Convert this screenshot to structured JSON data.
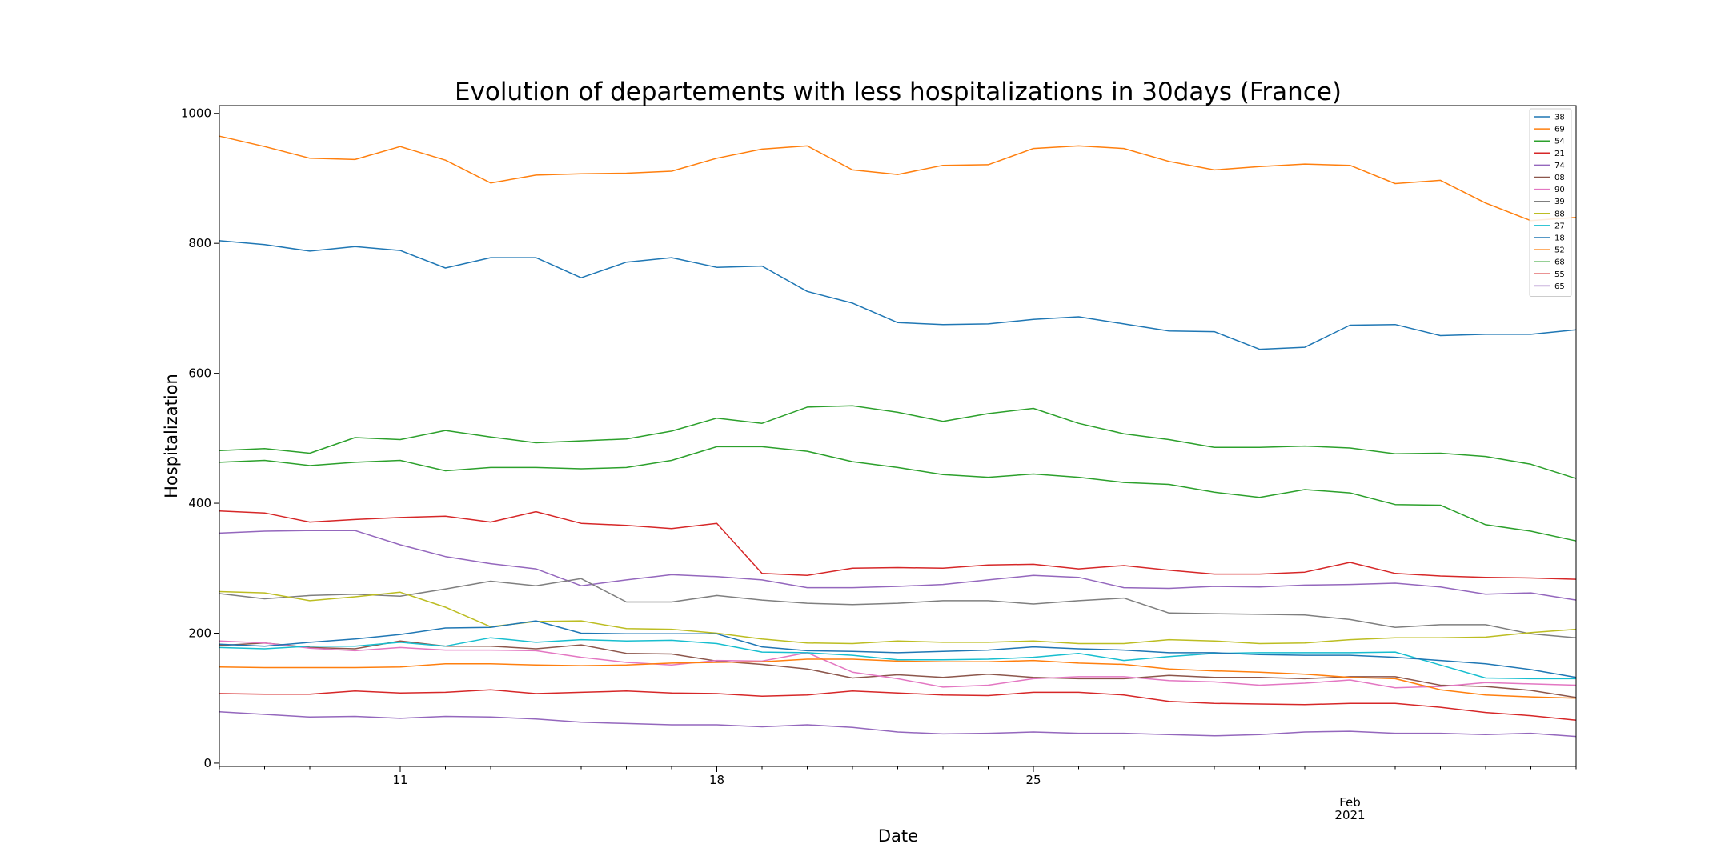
{
  "chart_data": {
    "type": "line",
    "title": "Evolution of departements with less hospitalizations in 30days (France)",
    "xlabel": "Date",
    "ylabel": "Hospitalization",
    "x": [
      "2021-01-07",
      "2021-01-08",
      "2021-01-09",
      "2021-01-10",
      "2021-01-11",
      "2021-01-12",
      "2021-01-13",
      "2021-01-14",
      "2021-01-15",
      "2021-01-16",
      "2021-01-17",
      "2021-01-18",
      "2021-01-19",
      "2021-01-20",
      "2021-01-21",
      "2021-01-22",
      "2021-01-23",
      "2021-01-24",
      "2021-01-25",
      "2021-01-26",
      "2021-01-27",
      "2021-01-28",
      "2021-01-29",
      "2021-01-30",
      "2021-01-31",
      "2021-02-01",
      "2021-02-02",
      "2021-02-03",
      "2021-02-04",
      "2021-02-05",
      "2021-02-06"
    ],
    "xlim": [
      "2021-01-07",
      "2021-02-06"
    ],
    "ylim": [
      -5,
      1012
    ],
    "x_ticks": [
      {
        "date": "2021-01-11",
        "label": "11"
      },
      {
        "date": "2021-01-18",
        "label": "18"
      },
      {
        "date": "2021-01-25",
        "label": "25"
      },
      {
        "date": "2021-02-01",
        "label": "Feb",
        "sublabel": "2021"
      }
    ],
    "y_ticks": [
      0,
      200,
      400,
      600,
      800,
      1000
    ],
    "grid": false,
    "legend_position": "top-right",
    "series": [
      {
        "name": "38",
        "color": "#1f77b4",
        "values": [
          804,
          798,
          788,
          795,
          789,
          762,
          778,
          778,
          747,
          771,
          778,
          763,
          765,
          726,
          708,
          678,
          675,
          676,
          683,
          687,
          676,
          665,
          664,
          637,
          640,
          674,
          675,
          658,
          660,
          660,
          667
        ]
      },
      {
        "name": "69",
        "color": "#ff7f0e",
        "values": [
          965,
          949,
          931,
          929,
          949,
          928,
          893,
          905,
          907,
          908,
          911,
          931,
          945,
          950,
          913,
          906,
          920,
          921,
          946,
          950,
          946,
          926,
          913,
          918,
          922,
          920,
          892,
          897,
          862,
          835,
          840
        ]
      },
      {
        "name": "54",
        "color": "#2ca02c",
        "values": [
          481,
          484,
          477,
          501,
          498,
          512,
          502,
          493,
          496,
          499,
          511,
          531,
          523,
          548,
          550,
          540,
          526,
          538,
          546,
          523,
          507,
          498,
          486,
          486,
          488,
          485,
          476,
          477,
          472,
          460,
          438
        ]
      },
      {
        "name": "21",
        "color": "#d62728",
        "values": [
          388,
          385,
          371,
          375,
          378,
          380,
          371,
          387,
          369,
          366,
          361,
          369,
          292,
          289,
          300,
          301,
          300,
          305,
          306,
          299,
          304,
          297,
          291,
          291,
          294,
          309,
          292,
          288,
          286,
          285,
          283
        ]
      },
      {
        "name": "74",
        "color": "#9467bd",
        "values": [
          354,
          357,
          358,
          358,
          336,
          318,
          307,
          299,
          273,
          282,
          290,
          287,
          282,
          270,
          270,
          272,
          275,
          282,
          289,
          286,
          270,
          269,
          272,
          271,
          274,
          275,
          277,
          271,
          260,
          262,
          251
        ]
      },
      {
        "name": "08",
        "color": "#8c564b",
        "values": [
          181,
          185,
          178,
          176,
          188,
          180,
          180,
          176,
          182,
          169,
          168,
          157,
          152,
          145,
          131,
          136,
          132,
          137,
          132,
          130,
          130,
          135,
          132,
          132,
          130,
          133,
          133,
          120,
          118,
          112,
          101
        ]
      },
      {
        "name": "90",
        "color": "#e377c2",
        "values": [
          188,
          185,
          177,
          173,
          178,
          174,
          174,
          173,
          163,
          155,
          151,
          158,
          157,
          170,
          140,
          130,
          117,
          120,
          130,
          133,
          133,
          127,
          125,
          120,
          123,
          128,
          116,
          118,
          124,
          122,
          120
        ]
      },
      {
        "name": "39",
        "color": "#7f7f7f",
        "values": [
          261,
          253,
          258,
          260,
          257,
          268,
          280,
          273,
          284,
          248,
          248,
          258,
          251,
          246,
          244,
          246,
          250,
          250,
          245,
          250,
          254,
          231,
          230,
          229,
          228,
          221,
          209,
          213,
          213,
          199,
          193
        ]
      },
      {
        "name": "88",
        "color": "#bcbd22",
        "values": [
          264,
          262,
          250,
          256,
          263,
          240,
          210,
          218,
          219,
          207,
          206,
          200,
          191,
          185,
          184,
          188,
          186,
          186,
          188,
          184,
          184,
          190,
          188,
          184,
          185,
          190,
          193,
          193,
          194,
          201,
          206
        ]
      },
      {
        "name": "27",
        "color": "#17becf",
        "values": [
          178,
          176,
          180,
          180,
          186,
          180,
          193,
          186,
          190,
          188,
          189,
          184,
          171,
          170,
          166,
          159,
          159,
          160,
          163,
          169,
          158,
          164,
          169,
          170,
          170,
          170,
          171,
          151,
          131,
          130,
          130
        ]
      },
      {
        "name": "18",
        "color": "#1f77b4",
        "values": [
          183,
          180,
          186,
          191,
          198,
          208,
          209,
          219,
          200,
          199,
          199,
          199,
          179,
          173,
          172,
          170,
          172,
          174,
          179,
          176,
          174,
          170,
          170,
          167,
          166,
          166,
          163,
          158,
          153,
          144,
          132
        ]
      },
      {
        "name": "52",
        "color": "#ff7f0e",
        "values": [
          148,
          147,
          147,
          147,
          148,
          153,
          153,
          151,
          150,
          151,
          154,
          155,
          156,
          160,
          160,
          157,
          156,
          156,
          158,
          154,
          152,
          145,
          142,
          140,
          137,
          132,
          130,
          113,
          105,
          102,
          100
        ]
      },
      {
        "name": "68",
        "color": "#2ca02c",
        "values": [
          463,
          466,
          458,
          463,
          466,
          450,
          455,
          455,
          453,
          455,
          466,
          487,
          487,
          480,
          464,
          455,
          444,
          440,
          445,
          440,
          432,
          429,
          417,
          409,
          421,
          416,
          398,
          397,
          367,
          357,
          342
        ]
      },
      {
        "name": "55",
        "color": "#d62728",
        "values": [
          107,
          106,
          106,
          111,
          108,
          109,
          113,
          107,
          109,
          111,
          108,
          107,
          103,
          105,
          111,
          108,
          105,
          104,
          109,
          109,
          105,
          95,
          92,
          91,
          90,
          92,
          92,
          86,
          78,
          73,
          66
        ]
      },
      {
        "name": "65",
        "color": "#9467bd",
        "values": [
          79,
          75,
          71,
          72,
          69,
          72,
          71,
          68,
          63,
          61,
          59,
          59,
          56,
          59,
          55,
          48,
          45,
          46,
          48,
          46,
          46,
          44,
          42,
          44,
          48,
          49,
          46,
          46,
          44,
          46,
          41
        ]
      }
    ]
  }
}
